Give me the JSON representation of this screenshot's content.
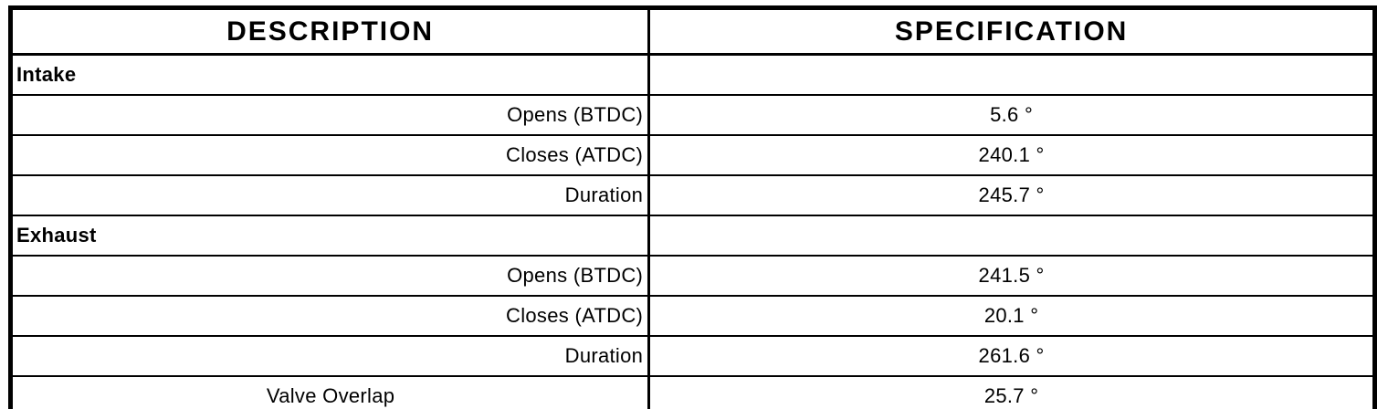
{
  "colors": {
    "background": "#ffffff",
    "line": "#000000",
    "text": "#000000"
  },
  "table": {
    "headers": [
      "DESCRIPTION",
      "SPECIFICATION"
    ],
    "rows": [
      {
        "description": "Intake",
        "specification": ""
      },
      {
        "description": "Opens (BTDC)",
        "specification": "5.6 °"
      },
      {
        "description": "Closes (ATDC)",
        "specification": "240.1 °"
      },
      {
        "description": "Duration",
        "specification": "245.7 °"
      },
      {
        "description": "Exhaust",
        "specification": ""
      },
      {
        "description": "Opens (BTDC)",
        "specification": "241.5 °"
      },
      {
        "description": "Closes (ATDC)",
        "specification": "20.1 °"
      },
      {
        "description": "Duration",
        "specification": "261.6 °"
      },
      {
        "description": "Valve Overlap",
        "specification": "25.7 °"
      }
    ]
  }
}
